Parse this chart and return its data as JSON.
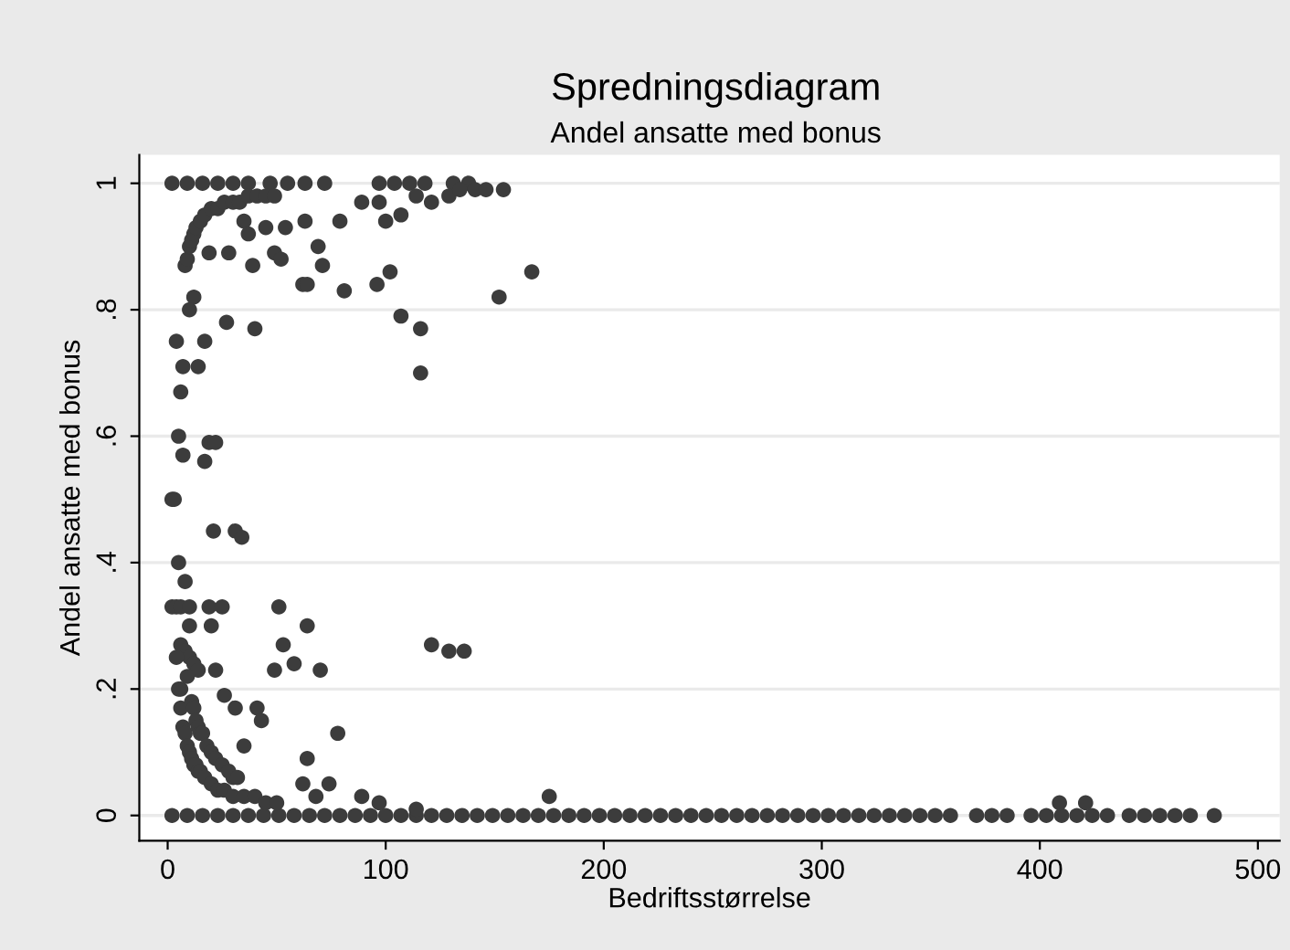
{
  "chart_data": {
    "type": "scatter",
    "title": "Spredningsdiagram",
    "subtitle": "Andel ansatte med bonus",
    "xlabel": "Bedriftsstørrelse",
    "ylabel": "Andel ansatte med bonus",
    "xlim": [
      -13,
      510
    ],
    "ylim": [
      -0.04,
      1.045
    ],
    "xticks": [
      0,
      100,
      200,
      300,
      400,
      500
    ],
    "yticks": [
      {
        "value": 0,
        "label": "0"
      },
      {
        "value": 0.2,
        "label": ".2"
      },
      {
        "value": 0.4,
        "label": ".4"
      },
      {
        "value": 0.6,
        "label": ".6"
      },
      {
        "value": 0.8,
        "label": ".8"
      },
      {
        "value": 1,
        "label": "1"
      }
    ],
    "grid": "y",
    "marker": "circle",
    "series": [
      {
        "color": "#3c3c3c",
        "x": [
          2,
          9,
          16,
          23,
          30,
          37,
          47,
          55,
          63,
          72,
          97,
          104,
          111,
          118,
          131,
          138
        ],
        "values": [
          1,
          1,
          1,
          1,
          1,
          1,
          1,
          1,
          1,
          1,
          1,
          1,
          1,
          1,
          1,
          1
        ]
      },
      {
        "color": "#3c3c3c",
        "x": [
          2,
          9,
          16,
          23,
          30,
          37,
          44,
          51,
          58,
          65,
          72,
          79,
          86,
          93,
          100,
          107,
          114,
          121,
          128,
          135,
          142,
          149,
          156,
          163,
          170,
          177,
          184,
          191,
          198,
          205,
          212,
          219,
          226,
          233,
          240,
          247,
          254,
          261,
          268,
          275,
          282,
          289,
          296,
          303,
          310,
          317,
          324,
          331,
          338,
          345,
          352,
          359,
          371,
          378,
          385,
          396,
          403,
          410,
          417,
          424,
          431,
          441,
          448,
          455,
          462,
          469,
          480
        ],
        "values": [
          0,
          0,
          0,
          0,
          0,
          0,
          0,
          0,
          0,
          0,
          0,
          0,
          0,
          0,
          0,
          0,
          0,
          0,
          0,
          0,
          0,
          0,
          0,
          0,
          0,
          0,
          0,
          0,
          0,
          0,
          0,
          0,
          0,
          0,
          0,
          0,
          0,
          0,
          0,
          0,
          0,
          0,
          0,
          0,
          0,
          0,
          0,
          0,
          0,
          0,
          0,
          0,
          0,
          0,
          0,
          0,
          0,
          0,
          0,
          0,
          0,
          0,
          0,
          0,
          0,
          0,
          0
        ]
      },
      {
        "color": "#3c3c3c",
        "x": [
          89,
          97,
          100,
          107,
          121,
          129,
          134,
          141,
          146,
          154,
          114,
          8,
          9,
          10,
          11,
          12,
          13,
          15,
          17,
          20,
          23,
          26,
          30,
          33,
          37,
          41,
          45,
          49,
          19,
          28,
          35,
          37,
          39,
          45,
          49,
          52,
          54,
          63,
          69,
          71,
          79,
          62,
          64,
          81,
          96,
          102,
          107,
          116,
          116,
          152,
          167,
          12,
          10,
          4,
          17,
          7,
          14,
          27,
          40,
          6,
          5,
          7,
          17,
          19,
          22,
          2,
          3,
          21,
          31,
          34,
          5,
          8,
          2,
          4,
          6,
          10,
          19,
          25,
          51,
          64,
          53,
          58,
          49,
          70,
          121,
          129,
          136,
          10,
          20,
          6,
          8,
          10,
          12,
          14,
          4,
          22,
          6,
          26,
          31,
          41,
          43,
          35,
          78,
          64,
          30,
          62,
          74,
          68,
          89,
          97,
          114,
          175,
          409,
          421,
          5,
          6,
          7,
          8,
          9,
          10,
          11,
          12,
          13,
          14,
          15,
          17,
          20,
          23,
          26,
          30,
          35,
          40,
          45,
          50,
          9,
          11,
          12,
          13,
          14,
          15,
          16,
          18,
          20,
          22,
          25,
          28,
          32
        ],
        "values": [
          0.97,
          0.97,
          0.94,
          0.95,
          0.97,
          0.98,
          0.99,
          0.99,
          0.99,
          0.99,
          0.98,
          0.87,
          0.88,
          0.9,
          0.91,
          0.92,
          0.93,
          0.94,
          0.95,
          0.96,
          0.96,
          0.97,
          0.97,
          0.97,
          0.98,
          0.98,
          0.98,
          0.98,
          0.89,
          0.89,
          0.94,
          0.92,
          0.87,
          0.93,
          0.89,
          0.88,
          0.93,
          0.94,
          0.9,
          0.87,
          0.94,
          0.84,
          0.84,
          0.83,
          0.84,
          0.86,
          0.79,
          0.77,
          0.7,
          0.82,
          0.86,
          0.82,
          0.8,
          0.75,
          0.75,
          0.71,
          0.71,
          0.78,
          0.77,
          0.67,
          0.6,
          0.57,
          0.56,
          0.59,
          0.59,
          0.5,
          0.5,
          0.45,
          0.45,
          0.44,
          0.4,
          0.37,
          0.33,
          0.33,
          0.33,
          0.33,
          0.33,
          0.33,
          0.33,
          0.3,
          0.27,
          0.24,
          0.23,
          0.23,
          0.27,
          0.26,
          0.26,
          0.3,
          0.3,
          0.27,
          0.26,
          0.25,
          0.24,
          0.23,
          0.25,
          0.23,
          0.2,
          0.19,
          0.17,
          0.17,
          0.15,
          0.11,
          0.13,
          0.09,
          0.06,
          0.05,
          0.05,
          0.03,
          0.03,
          0.02,
          0.01,
          0.03,
          0.02,
          0.02,
          0.2,
          0.17,
          0.14,
          0.13,
          0.11,
          0.1,
          0.09,
          0.08,
          0.08,
          0.07,
          0.07,
          0.06,
          0.05,
          0.04,
          0.04,
          0.03,
          0.03,
          0.03,
          0.02,
          0.02,
          0.22,
          0.18,
          0.17,
          0.15,
          0.14,
          0.13,
          0.13,
          0.11,
          0.1,
          0.09,
          0.08,
          0.07,
          0.06
        ]
      }
    ]
  }
}
